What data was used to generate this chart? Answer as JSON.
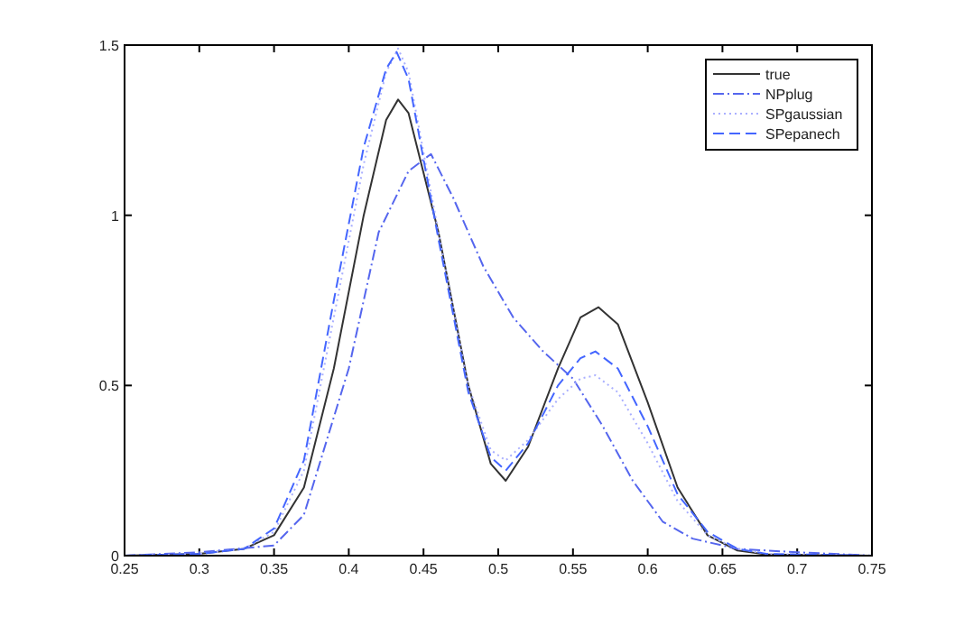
{
  "chart_data": {
    "type": "line",
    "xlim": [
      0.25,
      0.75
    ],
    "ylim": [
      0,
      1.5
    ],
    "xticks": [
      0.25,
      0.3,
      0.35,
      0.4,
      0.45,
      0.5,
      0.55,
      0.6,
      0.65,
      0.7,
      0.75
    ],
    "yticks": [
      0,
      0.5,
      1,
      1.5
    ],
    "legend": "top right",
    "grid": false,
    "series": [
      {
        "name": "true",
        "color": "#333333",
        "line_style": "solid",
        "x": [
          0.25,
          0.3,
          0.33,
          0.35,
          0.37,
          0.39,
          0.41,
          0.425,
          0.433,
          0.44,
          0.46,
          0.48,
          0.495,
          0.505,
          0.52,
          0.54,
          0.555,
          0.567,
          0.58,
          0.6,
          0.62,
          0.64,
          0.66,
          0.68,
          0.75
        ],
        "values": [
          0,
          0.005,
          0.02,
          0.06,
          0.2,
          0.55,
          1.0,
          1.28,
          1.34,
          1.3,
          0.95,
          0.5,
          0.27,
          0.22,
          0.32,
          0.55,
          0.7,
          0.73,
          0.68,
          0.45,
          0.2,
          0.06,
          0.015,
          0.003,
          0
        ]
      },
      {
        "name": "NPplug",
        "color": "#5566ee",
        "line_style": "dashdot",
        "x": [
          0.25,
          0.3,
          0.35,
          0.37,
          0.4,
          0.42,
          0.44,
          0.455,
          0.47,
          0.49,
          0.51,
          0.53,
          0.55,
          0.57,
          0.59,
          0.61,
          0.63,
          0.66,
          0.7,
          0.75
        ],
        "values": [
          0,
          0.01,
          0.03,
          0.12,
          0.55,
          0.95,
          1.13,
          1.18,
          1.05,
          0.85,
          0.7,
          0.6,
          0.52,
          0.38,
          0.22,
          0.1,
          0.05,
          0.02,
          0.01,
          0
        ]
      },
      {
        "name": "SPgaussian",
        "color": "#aab0ff",
        "line_style": "dotted",
        "x": [
          0.25,
          0.3,
          0.33,
          0.35,
          0.37,
          0.39,
          0.41,
          0.425,
          0.433,
          0.44,
          0.46,
          0.48,
          0.495,
          0.505,
          0.52,
          0.54,
          0.555,
          0.565,
          0.58,
          0.6,
          0.62,
          0.64,
          0.66,
          0.68,
          0.75
        ],
        "values": [
          0,
          0.005,
          0.02,
          0.07,
          0.25,
          0.7,
          1.15,
          1.42,
          1.49,
          1.42,
          0.95,
          0.5,
          0.31,
          0.28,
          0.34,
          0.46,
          0.52,
          0.53,
          0.48,
          0.33,
          0.16,
          0.06,
          0.02,
          0.005,
          0
        ]
      },
      {
        "name": "SPepanech",
        "color": "#4466ff",
        "line_style": "dashed",
        "x": [
          0.25,
          0.3,
          0.33,
          0.35,
          0.37,
          0.39,
          0.41,
          0.425,
          0.432,
          0.44,
          0.46,
          0.48,
          0.495,
          0.505,
          0.52,
          0.54,
          0.555,
          0.565,
          0.58,
          0.6,
          0.62,
          0.64,
          0.66,
          0.68,
          0.75
        ],
        "values": [
          0,
          0.005,
          0.02,
          0.08,
          0.28,
          0.75,
          1.2,
          1.43,
          1.48,
          1.4,
          0.93,
          0.48,
          0.29,
          0.25,
          0.33,
          0.5,
          0.58,
          0.6,
          0.55,
          0.38,
          0.18,
          0.07,
          0.02,
          0.005,
          0
        ]
      }
    ]
  }
}
